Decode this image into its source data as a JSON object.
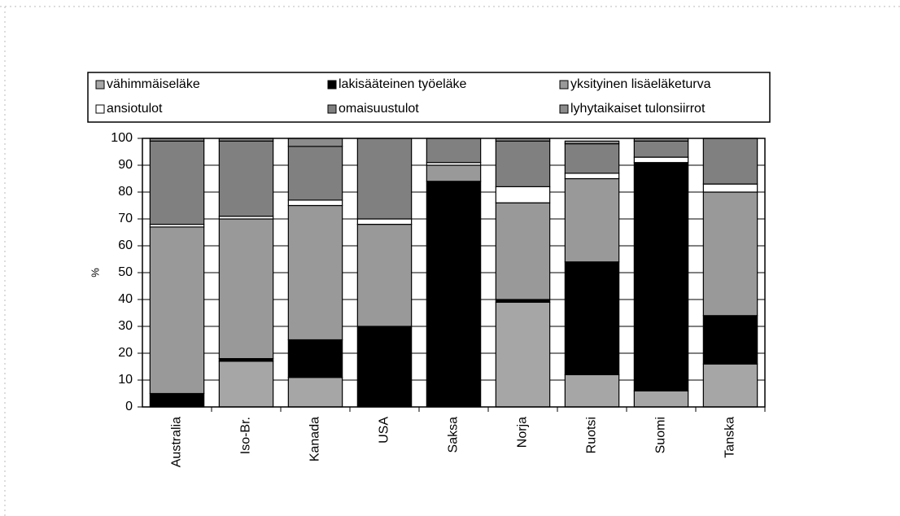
{
  "chart_data": {
    "type": "bar",
    "stacked": true,
    "y_label": "%",
    "categories": [
      "Australia",
      "Iso-Br.",
      "Kanada",
      "USA",
      "Saksa",
      "Norja",
      "Ruotsi",
      "Suomi",
      "Tanska"
    ],
    "series": [
      {
        "name": "vähimmäiseläke",
        "color": "#a6a6a6",
        "values": [
          0,
          17,
          11,
          0,
          0,
          39,
          12,
          6,
          16
        ]
      },
      {
        "name": "lakisääteinen työeläke",
        "color": "#000000",
        "values": [
          5,
          1,
          14,
          30,
          84,
          1,
          42,
          85,
          18
        ]
      },
      {
        "name": "yksityinen lisäeläketurva",
        "color": "#999999",
        "values": [
          62,
          52,
          50,
          38,
          6,
          36,
          31,
          0,
          46
        ]
      },
      {
        "name": "ansiotulot",
        "color": "#ffffff",
        "values": [
          1,
          1,
          2,
          2,
          1,
          6,
          2,
          2,
          3
        ]
      },
      {
        "name": "omaisuustulot",
        "color": "#808080",
        "values": [
          31,
          28,
          20,
          30,
          9,
          17,
          11,
          6,
          17
        ]
      },
      {
        "name": "lyhytaikaiset tulonsiirrot",
        "color": "#8c8c8c",
        "values": [
          1,
          1,
          3,
          0,
          0,
          1,
          1,
          1,
          0
        ]
      }
    ],
    "ylim": [
      0,
      100
    ],
    "yticks": [
      0,
      10,
      20,
      30,
      40,
      50,
      60,
      70,
      80,
      90,
      100
    ],
    "grid": true
  }
}
